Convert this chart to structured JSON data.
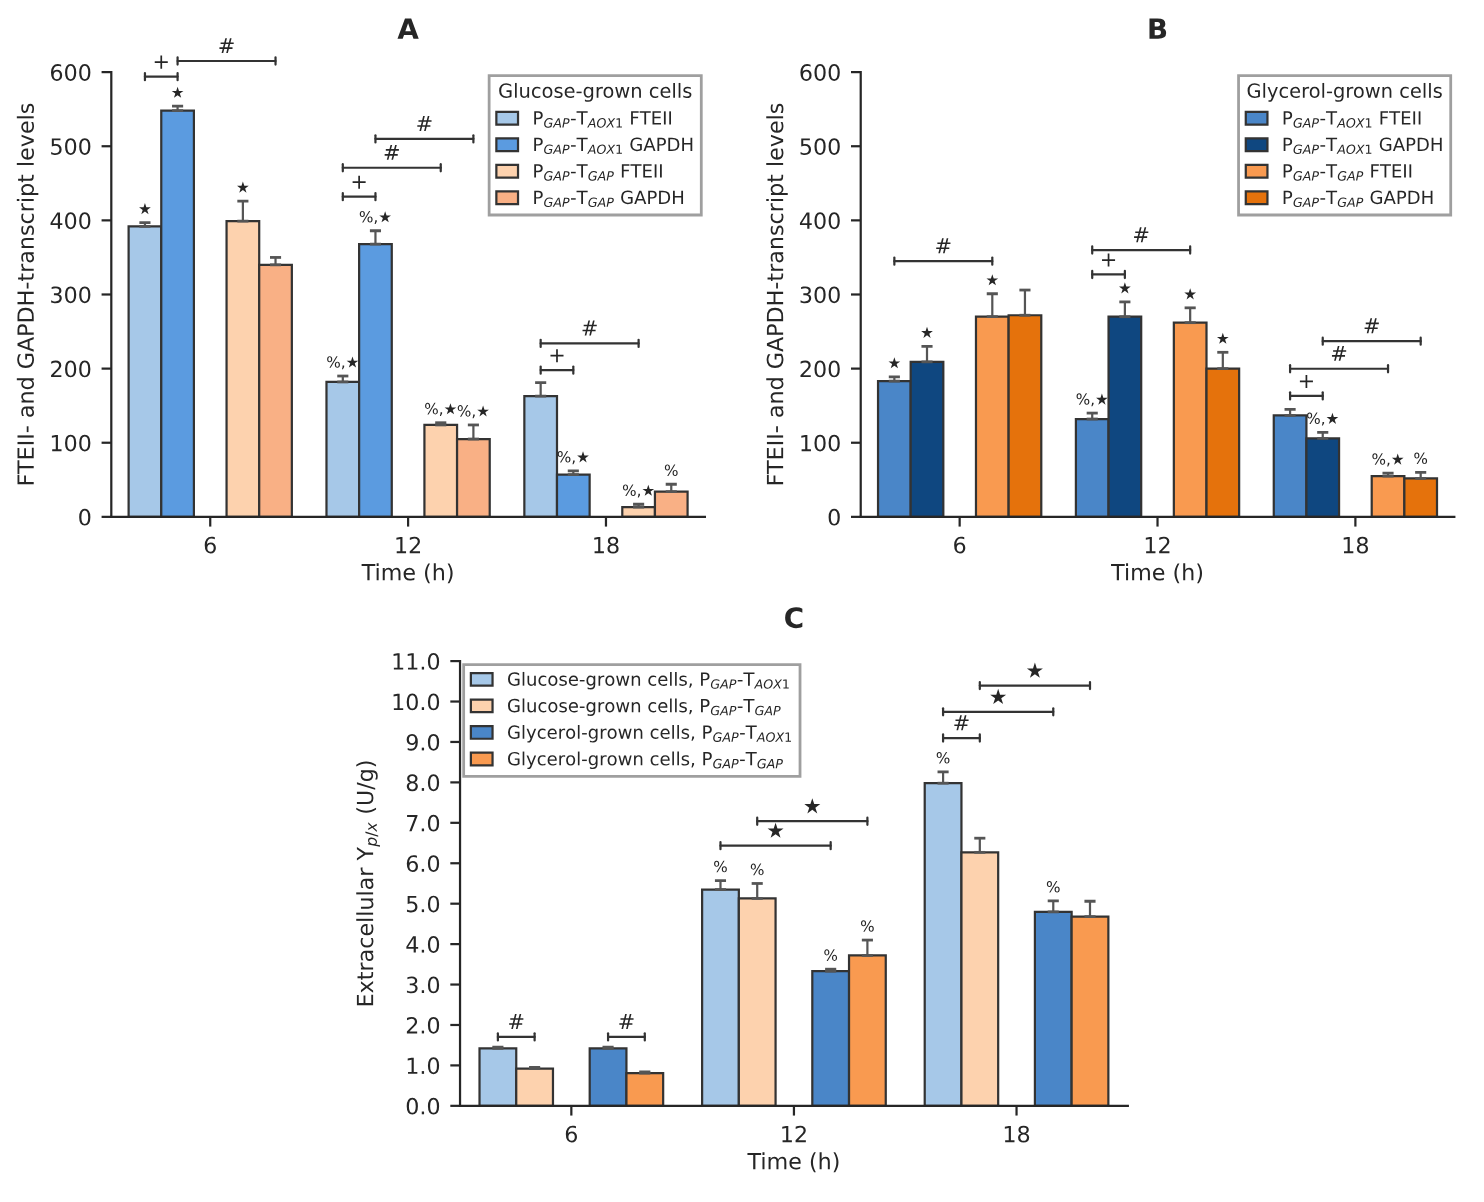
{
  "chart_data": [
    {
      "type": "bar",
      "title": "A",
      "xlabel": "Time (h)",
      "ylabel": "FTEII- and GAPDH-transcript levels",
      "legend_title": "Glucose-grown cells",
      "legend": "top right",
      "grid": false,
      "categories": [
        "6",
        "12",
        "18"
      ],
      "ylim": [
        0,
        600
      ],
      "yticks": [
        0,
        100,
        200,
        300,
        400,
        500,
        600
      ],
      "series": [
        {
          "name": "P$_{GAP}$-T$_{AOX1}$ FTEII",
          "color": "#a6c8e8",
          "values": [
            392,
            182,
            163
          ],
          "errors": [
            5,
            8,
            18
          ],
          "value_labels": [
            "★",
            "%,★",
            null
          ]
        },
        {
          "name": "P$_{GAP}$-T$_{AOX1}$ GAPDH",
          "color": "#5b9be0",
          "values": [
            548,
            368,
            57
          ],
          "errors": [
            6,
            18,
            5
          ],
          "value_labels": [
            "★",
            "%,★",
            "%,★"
          ]
        },
        {
          "name": "P$_{GAP}$-T$_{GAP}$ FTEII",
          "color": "#fdd2ae",
          "values": [
            399,
            124,
            13
          ],
          "errors": [
            27,
            3,
            4
          ],
          "value_labels": [
            "★",
            "%,★",
            "%,★"
          ]
        },
        {
          "name": "P$_{GAP}$-T$_{GAP}$ GAPDH",
          "color": "#f9b085",
          "values": [
            340,
            105,
            34
          ],
          "errors": [
            10,
            19,
            10
          ],
          "value_labels": [
            null,
            "%,★",
            "%"
          ]
        }
      ],
      "annotations": [
        "+",
        "#",
        "+",
        "#",
        "#",
        "+",
        "#"
      ]
    },
    {
      "type": "bar",
      "title": "B",
      "xlabel": "Time (h)",
      "ylabel": "FTEII- and GAPDH-transcript levels",
      "legend_title": "Glycerol-grown cells",
      "legend": "top right",
      "grid": false,
      "categories": [
        "6",
        "12",
        "18"
      ],
      "ylim": [
        0,
        600
      ],
      "yticks": [
        0,
        100,
        200,
        300,
        400,
        500,
        600
      ],
      "series": [
        {
          "name": "P$_{GAP}$-T$_{AOX1}$ FTEII",
          "color": "#4a86c8",
          "values": [
            183,
            132,
            137
          ],
          "errors": [
            6,
            8,
            8
          ],
          "value_labels": [
            "★",
            "%,★",
            null
          ]
        },
        {
          "name": "P$_{GAP}$-T$_{AOX1}$ GAPDH",
          "color": "#0f4780",
          "values": [
            209,
            270,
            106
          ],
          "errors": [
            21,
            20,
            8
          ],
          "value_labels": [
            "★",
            "★",
            "%,★"
          ]
        },
        {
          "name": "P$_{GAP}$-T$_{GAP}$ FTEII",
          "color": "#f99a50",
          "values": [
            270,
            262,
            55
          ],
          "errors": [
            31,
            20,
            4
          ],
          "value_labels": [
            "★",
            "★",
            "%,★"
          ]
        },
        {
          "name": "P$_{GAP}$-T$_{GAP}$ GAPDH",
          "color": "#e5720c",
          "values": [
            272,
            200,
            52
          ],
          "errors": [
            34,
            22,
            8
          ],
          "value_labels": [
            null,
            "★",
            "%"
          ]
        }
      ],
      "annotations": [
        "#",
        "+",
        "#",
        "+",
        "#",
        "#"
      ]
    },
    {
      "type": "bar",
      "title": "C",
      "xlabel": "Time (h)",
      "ylabel": "Extracellular Y$_{p/x}$ (U/g)",
      "legend": "top left",
      "grid": false,
      "categories": [
        "6",
        "12",
        "18"
      ],
      "ylim": [
        0,
        11
      ],
      "yticks": [
        {
          "value": 0,
          "label": "0.0"
        },
        {
          "value": 1,
          "label": "1.0"
        },
        {
          "value": 2,
          "label": "2.0"
        },
        {
          "value": 3,
          "label": "3.0"
        },
        {
          "value": 4,
          "label": "4.0"
        },
        {
          "value": 5,
          "label": "5.0"
        },
        {
          "value": 6,
          "label": "6.0"
        },
        {
          "value": 7,
          "label": "7.0"
        },
        {
          "value": 8,
          "label": "8.0"
        },
        {
          "value": 9,
          "label": "9.0"
        },
        {
          "value": 10,
          "label": "10.0"
        },
        {
          "value": 11,
          "label": "11.0"
        }
      ],
      "series": [
        {
          "name": "Glucose-grown cells, P$_{GAP}$-T$_{AOX1}$",
          "color": "#a6c8e8",
          "values": [
            1.42,
            5.35,
            7.98
          ],
          "errors": [
            0.03,
            0.22,
            0.28
          ],
          "value_labels": [
            null,
            "%",
            "%"
          ]
        },
        {
          "name": "Glucose-grown cells, P$_{GAP}$-T$_{GAP}$",
          "color": "#fdd2ae",
          "values": [
            0.92,
            5.13,
            6.27
          ],
          "errors": [
            0.03,
            0.37,
            0.35
          ],
          "value_labels": [
            null,
            "%",
            null
          ]
        },
        {
          "name": "Glycerol-grown cells, P$_{GAP}$-T$_{AOX1}$",
          "color": "#4a86c8",
          "values": [
            1.42,
            3.33,
            4.8
          ],
          "errors": [
            0.03,
            0.05,
            0.27
          ],
          "value_labels": [
            null,
            "%",
            "%"
          ]
        },
        {
          "name": "Glycerol-grown cells, P$_{GAP}$-T$_{GAP}$",
          "color": "#f99a50",
          "values": [
            0.81,
            3.72,
            4.68
          ],
          "errors": [
            0.03,
            0.38,
            0.38
          ],
          "value_labels": [
            null,
            "%",
            null
          ]
        }
      ],
      "annotations": [
        "#",
        "#",
        "★",
        "★",
        "#",
        "★",
        "★"
      ]
    }
  ]
}
